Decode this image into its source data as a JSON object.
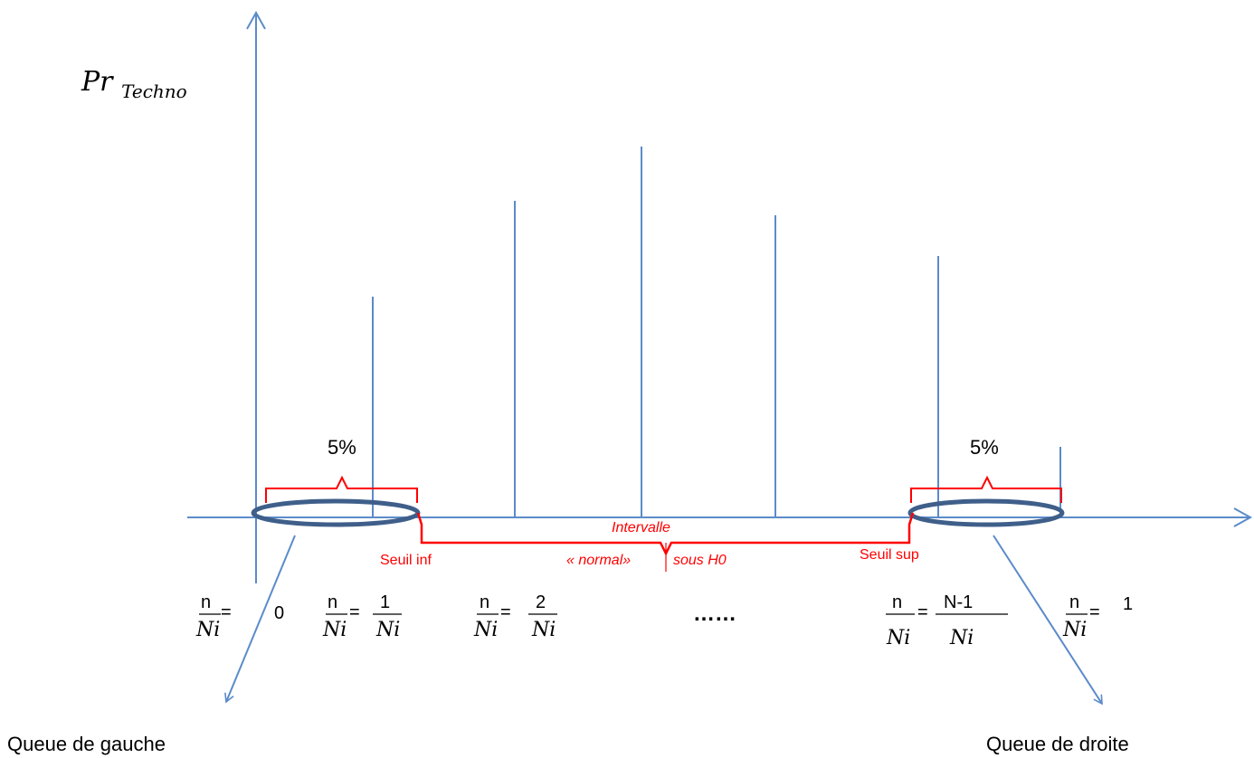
{
  "colors": {
    "axis": "#5b8bc9",
    "bar": "#5b8bc9",
    "ellipse": "#3f5f8a",
    "bracket": "#ff0000",
    "annotation_text": "#ff0000",
    "text": "#000000"
  },
  "y_axis_label": {
    "base": "Pr",
    "subscript": "Techno"
  },
  "tails": {
    "left": {
      "percent": "5%",
      "label": "Queue de gauche"
    },
    "right": {
      "percent": "5%",
      "label": "Queue de droite"
    }
  },
  "thresholds": {
    "lower": "Seuil inf",
    "upper": "Seuil sup"
  },
  "interval": {
    "line1": "Intervalle",
    "line2a": "« normal»",
    "line2b": "sous H0"
  },
  "fractions": {
    "lhs_num": "n",
    "lhs_den": "Ni",
    "equals": "=",
    "values": [
      {
        "num": "",
        "den": "",
        "plain": "0"
      },
      {
        "num": "1",
        "den": "Ni",
        "plain": ""
      },
      {
        "num": "2",
        "den": "Ni",
        "plain": ""
      },
      {
        "num": "N-1",
        "den": "Ni",
        "plain": ""
      },
      {
        "num": "",
        "den": "",
        "plain": "1"
      }
    ],
    "ellipsis": "……"
  }
}
